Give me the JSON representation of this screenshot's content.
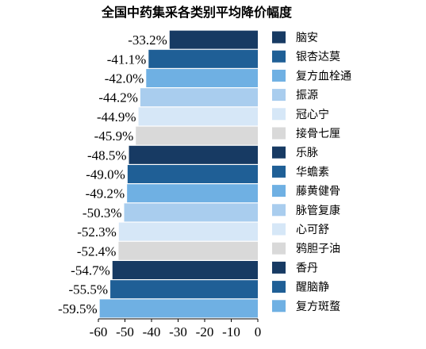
{
  "chart_data": {
    "type": "bar",
    "orientation": "horizontal",
    "title": "全国中药集采各类别平均降价幅度",
    "categories": [
      "脑安",
      "银杏达莫",
      "复方血栓通",
      "振源",
      "冠心宁",
      "接骨七厘",
      "乐脉",
      "华蟾素",
      "藤黄健骨",
      "脉管复康",
      "心可舒",
      "鸦胆子油",
      "香丹",
      "醒脑静",
      "复方斑蝥"
    ],
    "values": [
      -33.2,
      -41.1,
      -42.0,
      -44.2,
      -44.9,
      -45.9,
      -48.5,
      -49.0,
      -49.2,
      -50.3,
      -52.3,
      -52.4,
      -54.7,
      -55.5,
      -59.5
    ],
    "value_labels": [
      "-33.2%",
      "-41.1%",
      "-42.0%",
      "-44.2%",
      "-44.9%",
      "-45.9%",
      "-48.5%",
      "-49.0%",
      "-49.2%",
      "-50.3%",
      "-52.3%",
      "-52.4%",
      "-54.7%",
      "-55.5%",
      "-59.5%"
    ],
    "colors": [
      "#173a63",
      "#1f5f96",
      "#6fb0e3",
      "#a9cdee",
      "#d6e7f7",
      "#d9d9d9",
      "#173a63",
      "#1f5f96",
      "#6fb0e3",
      "#a9cdee",
      "#d6e7f7",
      "#d9d9d9",
      "#173a63",
      "#1f5f96",
      "#6fb0e3"
    ],
    "xlim": [
      -60,
      0
    ],
    "x_ticks": [
      -60,
      -50,
      -40,
      -30,
      -20,
      -10,
      0
    ],
    "x_tick_labels": [
      "-60",
      "-50",
      "-40",
      "-30",
      "-20",
      "-10",
      "0"
    ],
    "grid": false,
    "legend_position": "right"
  }
}
